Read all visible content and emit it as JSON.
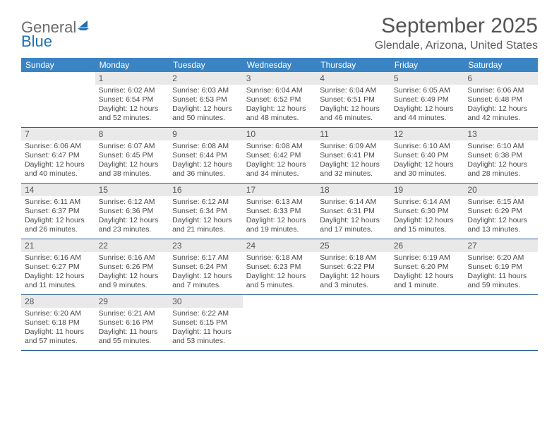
{
  "logo": {
    "general": "General",
    "blue": "Blue"
  },
  "title": "September 2025",
  "location": "Glendale, Arizona, United States",
  "colors": {
    "header_bg": "#3b84c4",
    "header_text": "#ffffff",
    "daynum_bg": "#e9e9e9",
    "text": "#4a4a4a",
    "border": "#2b5f90",
    "logo_gray": "#6b6b6b",
    "logo_blue": "#1f6fb2"
  },
  "dayNames": [
    "Sunday",
    "Monday",
    "Tuesday",
    "Wednesday",
    "Thursday",
    "Friday",
    "Saturday"
  ],
  "weeks": [
    [
      {
        "n": "",
        "sr": "",
        "ss": "",
        "dl": ""
      },
      {
        "n": "1",
        "sr": "Sunrise: 6:02 AM",
        "ss": "Sunset: 6:54 PM",
        "dl": "Daylight: 12 hours and 52 minutes."
      },
      {
        "n": "2",
        "sr": "Sunrise: 6:03 AM",
        "ss": "Sunset: 6:53 PM",
        "dl": "Daylight: 12 hours and 50 minutes."
      },
      {
        "n": "3",
        "sr": "Sunrise: 6:04 AM",
        "ss": "Sunset: 6:52 PM",
        "dl": "Daylight: 12 hours and 48 minutes."
      },
      {
        "n": "4",
        "sr": "Sunrise: 6:04 AM",
        "ss": "Sunset: 6:51 PM",
        "dl": "Daylight: 12 hours and 46 minutes."
      },
      {
        "n": "5",
        "sr": "Sunrise: 6:05 AM",
        "ss": "Sunset: 6:49 PM",
        "dl": "Daylight: 12 hours and 44 minutes."
      },
      {
        "n": "6",
        "sr": "Sunrise: 6:06 AM",
        "ss": "Sunset: 6:48 PM",
        "dl": "Daylight: 12 hours and 42 minutes."
      }
    ],
    [
      {
        "n": "7",
        "sr": "Sunrise: 6:06 AM",
        "ss": "Sunset: 6:47 PM",
        "dl": "Daylight: 12 hours and 40 minutes."
      },
      {
        "n": "8",
        "sr": "Sunrise: 6:07 AM",
        "ss": "Sunset: 6:45 PM",
        "dl": "Daylight: 12 hours and 38 minutes."
      },
      {
        "n": "9",
        "sr": "Sunrise: 6:08 AM",
        "ss": "Sunset: 6:44 PM",
        "dl": "Daylight: 12 hours and 36 minutes."
      },
      {
        "n": "10",
        "sr": "Sunrise: 6:08 AM",
        "ss": "Sunset: 6:42 PM",
        "dl": "Daylight: 12 hours and 34 minutes."
      },
      {
        "n": "11",
        "sr": "Sunrise: 6:09 AM",
        "ss": "Sunset: 6:41 PM",
        "dl": "Daylight: 12 hours and 32 minutes."
      },
      {
        "n": "12",
        "sr": "Sunrise: 6:10 AM",
        "ss": "Sunset: 6:40 PM",
        "dl": "Daylight: 12 hours and 30 minutes."
      },
      {
        "n": "13",
        "sr": "Sunrise: 6:10 AM",
        "ss": "Sunset: 6:38 PM",
        "dl": "Daylight: 12 hours and 28 minutes."
      }
    ],
    [
      {
        "n": "14",
        "sr": "Sunrise: 6:11 AM",
        "ss": "Sunset: 6:37 PM",
        "dl": "Daylight: 12 hours and 26 minutes."
      },
      {
        "n": "15",
        "sr": "Sunrise: 6:12 AM",
        "ss": "Sunset: 6:36 PM",
        "dl": "Daylight: 12 hours and 23 minutes."
      },
      {
        "n": "16",
        "sr": "Sunrise: 6:12 AM",
        "ss": "Sunset: 6:34 PM",
        "dl": "Daylight: 12 hours and 21 minutes."
      },
      {
        "n": "17",
        "sr": "Sunrise: 6:13 AM",
        "ss": "Sunset: 6:33 PM",
        "dl": "Daylight: 12 hours and 19 minutes."
      },
      {
        "n": "18",
        "sr": "Sunrise: 6:14 AM",
        "ss": "Sunset: 6:31 PM",
        "dl": "Daylight: 12 hours and 17 minutes."
      },
      {
        "n": "19",
        "sr": "Sunrise: 6:14 AM",
        "ss": "Sunset: 6:30 PM",
        "dl": "Daylight: 12 hours and 15 minutes."
      },
      {
        "n": "20",
        "sr": "Sunrise: 6:15 AM",
        "ss": "Sunset: 6:29 PM",
        "dl": "Daylight: 12 hours and 13 minutes."
      }
    ],
    [
      {
        "n": "21",
        "sr": "Sunrise: 6:16 AM",
        "ss": "Sunset: 6:27 PM",
        "dl": "Daylight: 12 hours and 11 minutes."
      },
      {
        "n": "22",
        "sr": "Sunrise: 6:16 AM",
        "ss": "Sunset: 6:26 PM",
        "dl": "Daylight: 12 hours and 9 minutes."
      },
      {
        "n": "23",
        "sr": "Sunrise: 6:17 AM",
        "ss": "Sunset: 6:24 PM",
        "dl": "Daylight: 12 hours and 7 minutes."
      },
      {
        "n": "24",
        "sr": "Sunrise: 6:18 AM",
        "ss": "Sunset: 6:23 PM",
        "dl": "Daylight: 12 hours and 5 minutes."
      },
      {
        "n": "25",
        "sr": "Sunrise: 6:18 AM",
        "ss": "Sunset: 6:22 PM",
        "dl": "Daylight: 12 hours and 3 minutes."
      },
      {
        "n": "26",
        "sr": "Sunrise: 6:19 AM",
        "ss": "Sunset: 6:20 PM",
        "dl": "Daylight: 12 hours and 1 minute."
      },
      {
        "n": "27",
        "sr": "Sunrise: 6:20 AM",
        "ss": "Sunset: 6:19 PM",
        "dl": "Daylight: 11 hours and 59 minutes."
      }
    ],
    [
      {
        "n": "28",
        "sr": "Sunrise: 6:20 AM",
        "ss": "Sunset: 6:18 PM",
        "dl": "Daylight: 11 hours and 57 minutes."
      },
      {
        "n": "29",
        "sr": "Sunrise: 6:21 AM",
        "ss": "Sunset: 6:16 PM",
        "dl": "Daylight: 11 hours and 55 minutes."
      },
      {
        "n": "30",
        "sr": "Sunrise: 6:22 AM",
        "ss": "Sunset: 6:15 PM",
        "dl": "Daylight: 11 hours and 53 minutes."
      },
      {
        "n": "",
        "sr": "",
        "ss": "",
        "dl": ""
      },
      {
        "n": "",
        "sr": "",
        "ss": "",
        "dl": ""
      },
      {
        "n": "",
        "sr": "",
        "ss": "",
        "dl": ""
      },
      {
        "n": "",
        "sr": "",
        "ss": "",
        "dl": ""
      }
    ]
  ]
}
